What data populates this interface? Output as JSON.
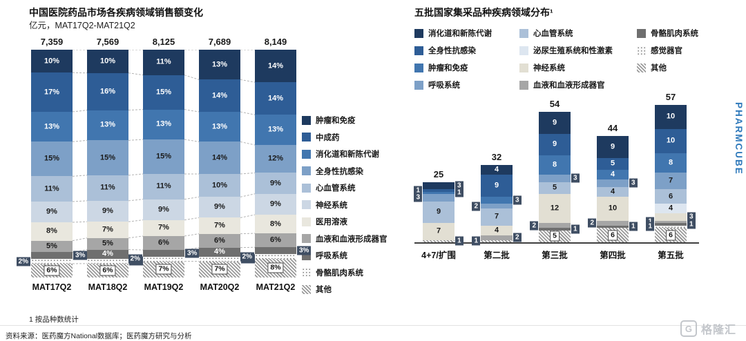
{
  "page": {
    "footnote": "1 按品种数统计",
    "source": "资料来源：医药魔方National数据库；医药魔方研究与分析",
    "watermark": {
      "part1": "PHARM",
      "part2": "CUBE"
    },
    "logo_icon": "G",
    "logo_text": "格隆汇"
  },
  "chart_data": [
    {
      "type": "bar",
      "stacked": true,
      "title": "中国医院药品市场各疾病领域销售额变化",
      "subtitle": "亿元，MAT17Q2-MAT21Q2",
      "label_suffix": "%",
      "legend_position": "right",
      "categories": [
        "MAT17Q2",
        "MAT18Q2",
        "MAT19Q2",
        "MAT20Q2",
        "MAT21Q2"
      ],
      "totals": [
        "7,359",
        "7,569",
        "8,125",
        "7,689",
        "8,149"
      ],
      "series": [
        {
          "name": "肿瘤和免疫",
          "color": "#1e3a5f",
          "values": [
            10,
            10,
            11,
            13,
            14
          ]
        },
        {
          "name": "中成药",
          "color": "#2e5d96",
          "values": [
            17,
            16,
            15,
            14,
            14
          ]
        },
        {
          "name": "消化道和新陈代谢",
          "color": "#4176af",
          "values": [
            13,
            13,
            13,
            13,
            13
          ]
        },
        {
          "name": "全身性抗感染",
          "color": "#7da0c7",
          "values": [
            15,
            15,
            15,
            14,
            12
          ]
        },
        {
          "name": "心血管系统",
          "color": "#abc0d8",
          "values": [
            11,
            11,
            11,
            10,
            9
          ]
        },
        {
          "name": "神经系统",
          "color": "#ccd7e4",
          "values": [
            9,
            9,
            9,
            9,
            9
          ]
        },
        {
          "name": "医用溶液",
          "color": "#e9e7de",
          "values": [
            8,
            7,
            7,
            7,
            8
          ]
        },
        {
          "name": "血液和血液形成器官",
          "color": "#a6a6a6",
          "values": [
            5,
            5,
            6,
            6,
            6
          ]
        },
        {
          "name": "呼吸系统",
          "color": "#6f6f6f",
          "values": [
            3,
            4,
            3,
            4,
            3
          ]
        },
        {
          "name": "骨骼肌肉系统",
          "pattern": "dots",
          "values": [
            2,
            2,
            2,
            2,
            2
          ]
        },
        {
          "name": "其他",
          "pattern": "hatch",
          "values": [
            6,
            6,
            7,
            7,
            8
          ]
        }
      ]
    },
    {
      "type": "bar",
      "stacked": true,
      "title": "五批国家集采品种疾病领域分布¹",
      "label_suffix": "",
      "legend_position": "top",
      "categories": [
        "4+7/扩围",
        "第二批",
        "第三批",
        "第四批",
        "第五批"
      ],
      "totals": [
        "25",
        "32",
        "54",
        "44",
        "57"
      ],
      "series": [
        {
          "name": "消化道和新陈代谢",
          "color": "#1e3a5f",
          "values": [
            3,
            4,
            9,
            9,
            10
          ]
        },
        {
          "name": "全身性抗感染",
          "color": "#2e5d96",
          "values": [
            1,
            9,
            9,
            5,
            10
          ]
        },
        {
          "name": "肿瘤和免疫",
          "color": "#4176af",
          "values": [
            1,
            3,
            8,
            4,
            8
          ]
        },
        {
          "name": "呼吸系统",
          "color": "#7da0c7",
          "values": [
            3,
            2,
            3,
            3,
            7
          ]
        },
        {
          "name": "心血管系统",
          "color": "#abc0d8",
          "values": [
            9,
            7,
            5,
            4,
            6
          ]
        },
        {
          "name": "泌尿生殖系统和性激素",
          "color": "#dde6f0",
          "values": [
            0,
            0,
            0,
            0,
            4
          ]
        },
        {
          "name": "神经系统",
          "color": "#e2dfd3",
          "values": [
            7,
            4,
            12,
            10,
            3
          ]
        },
        {
          "name": "血液和血液形成器官",
          "color": "#a6a6a6",
          "values": [
            0,
            2,
            2,
            2,
            1
          ]
        },
        {
          "name": "骨骼肌肉系统",
          "color": "#6f6f6f",
          "values": [
            0,
            0,
            1,
            1,
            1
          ]
        },
        {
          "name": "感觉器官",
          "pattern": "dots",
          "values": [
            0,
            0,
            0,
            0,
            1
          ]
        },
        {
          "name": "其他",
          "pattern": "hatch",
          "values": [
            1,
            1,
            5,
            6,
            6
          ]
        }
      ]
    }
  ]
}
